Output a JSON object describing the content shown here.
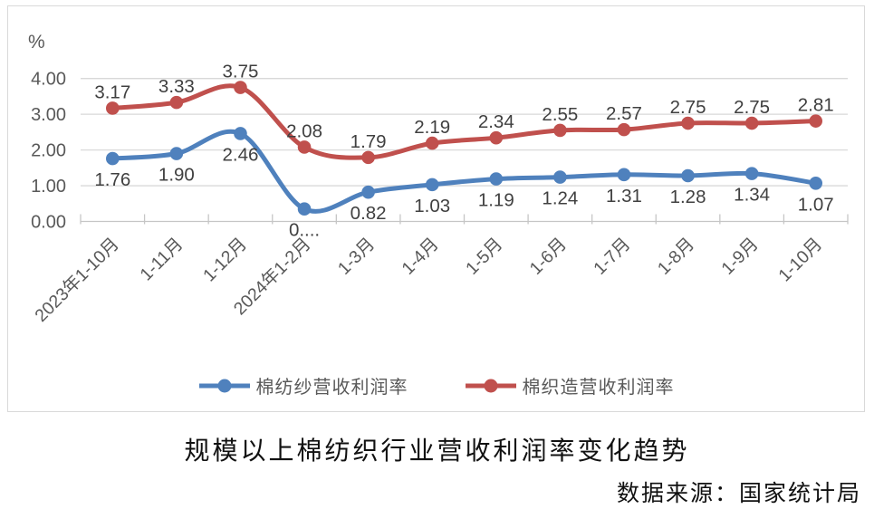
{
  "unit_label": "%",
  "title": "规模以上棉纺织行业营收利润率变化趋势",
  "source": "数据来源：国家统计局",
  "colors": {
    "series_blue": "#4F81BD",
    "series_red": "#C0504D",
    "gridline": "#D9D9D9",
    "axis_line": "#C6C6C6",
    "tick_mark": "#C6C6C6",
    "axis_text": "#595959",
    "data_label_text": "#404040",
    "frame_border": "#D9D9D9"
  },
  "chart_data": {
    "type": "line",
    "title": "规模以上棉纺织行业营收利润率变化趋势",
    "source": "数据来源：国家统计局",
    "ylabel": "%",
    "ylim": [
      0,
      4
    ],
    "ytick_labels": [
      "0.00",
      "1.00",
      "2.00",
      "3.00",
      "4.00"
    ],
    "grid": true,
    "smooth_lines": true,
    "legend_position": "bottom",
    "categories": [
      "2023年1-10月",
      "1-11月",
      "1-12月",
      "2024年1-2月",
      "1-3月",
      "1-4月",
      "1-5月",
      "1-6月",
      "1-7月",
      "1-8月",
      "1-9月",
      "1-10月"
    ],
    "series": [
      {
        "name": "棉纺纱营收利润率",
        "color": "#4F81BD",
        "values": [
          1.76,
          1.9,
          2.46,
          0.35,
          0.82,
          1.03,
          1.19,
          1.24,
          1.31,
          1.28,
          1.34,
          1.07
        ],
        "labels": [
          "1.76",
          "1.90",
          "2.46",
          "0....",
          "0.82",
          "1.03",
          "1.19",
          "1.24",
          "1.31",
          "1.28",
          "1.34",
          "1.07"
        ],
        "label_position": "below"
      },
      {
        "name": "棉织造营收利润率",
        "color": "#C0504D",
        "values": [
          3.17,
          3.33,
          3.75,
          2.08,
          1.79,
          2.19,
          2.34,
          2.55,
          2.57,
          2.75,
          2.75,
          2.81
        ],
        "labels": [
          "3.17",
          "3.33",
          "3.75",
          "2.08",
          "1.79",
          "2.19",
          "2.34",
          "2.55",
          "2.57",
          "2.75",
          "2.75",
          "2.81"
        ],
        "label_position": "above"
      }
    ]
  }
}
